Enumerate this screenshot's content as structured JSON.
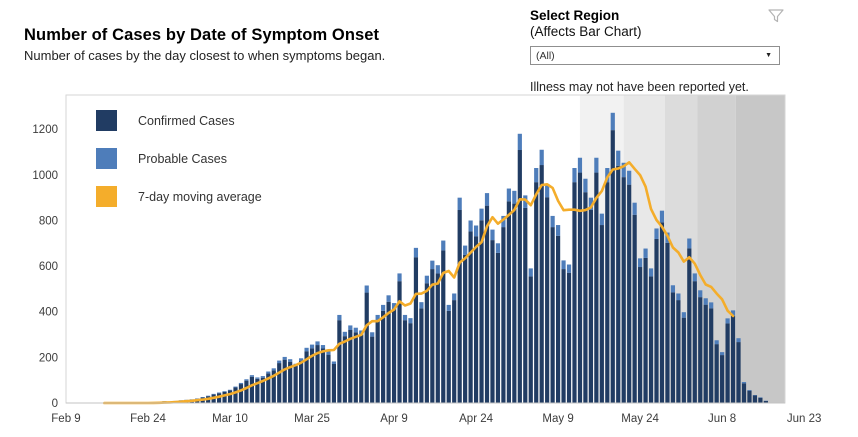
{
  "header": {
    "title": "Number of Cases by Date of Symptom Onset",
    "subtitle": "Number of cases by the day closest to when symptoms began."
  },
  "region_filter": {
    "label": "Select Region",
    "sublabel": "(Affects Bar Chart)",
    "selected": "(All)",
    "icons": {
      "filter": "funnel-icon",
      "dropdown_caret": "caret-down-icon"
    }
  },
  "chart_notes": {
    "unreported_note": "Illness may not have been reported yet."
  },
  "legend": [
    {
      "label": "Confirmed Cases",
      "color": "#213c63"
    },
    {
      "label": "Probable Cases",
      "color": "#4e7dba"
    },
    {
      "label": "7-day moving average",
      "color": "#f4ad2b"
    }
  ],
  "chart_data": {
    "type": "bar",
    "stacked": true,
    "title": "Number of Cases by Date of Symptom Onset",
    "xlabel": "",
    "ylabel": "",
    "ylim": [
      0,
      1350
    ],
    "grid": false,
    "yticks": [
      0,
      200,
      400,
      600,
      800,
      1000,
      1200
    ],
    "xticks": [
      {
        "label": "Feb 9",
        "day": 0
      },
      {
        "label": "Feb 24",
        "day": 15
      },
      {
        "label": "Mar 10",
        "day": 30
      },
      {
        "label": "Mar 25",
        "day": 45
      },
      {
        "label": "Apr 9",
        "day": 60
      },
      {
        "label": "Apr 24",
        "day": 75
      },
      {
        "label": "May 9",
        "day": 90
      },
      {
        "label": "May 24",
        "day": 105
      },
      {
        "label": "Jun 8",
        "day": 120
      },
      {
        "label": "Jun 23",
        "day": 135
      }
    ],
    "dates": [
      "Feb 16",
      "Feb 17",
      "Feb 18",
      "Feb 19",
      "Feb 20",
      "Feb 21",
      "Feb 22",
      "Feb 23",
      "Feb 24",
      "Feb 25",
      "Feb 26",
      "Feb 27",
      "Feb 28",
      "Feb 29",
      "Mar 1",
      "Mar 2",
      "Mar 3",
      "Mar 4",
      "Mar 5",
      "Mar 6",
      "Mar 7",
      "Mar 8",
      "Mar 9",
      "Mar 10",
      "Mar 11",
      "Mar 12",
      "Mar 13",
      "Mar 14",
      "Mar 15",
      "Mar 16",
      "Mar 17",
      "Mar 18",
      "Mar 19",
      "Mar 20",
      "Mar 21",
      "Mar 22",
      "Mar 23",
      "Mar 24",
      "Mar 25",
      "Mar 26",
      "Mar 27",
      "Mar 28",
      "Mar 29",
      "Mar 30",
      "Mar 31",
      "Apr 1",
      "Apr 2",
      "Apr 3",
      "Apr 4",
      "Apr 5",
      "Apr 6",
      "Apr 7",
      "Apr 8",
      "Apr 9",
      "Apr 10",
      "Apr 11",
      "Apr 12",
      "Apr 13",
      "Apr 14",
      "Apr 15",
      "Apr 16",
      "Apr 17",
      "Apr 18",
      "Apr 19",
      "Apr 20",
      "Apr 21",
      "Apr 22",
      "Apr 23",
      "Apr 24",
      "Apr 25",
      "Apr 26",
      "Apr 27",
      "Apr 28",
      "Apr 29",
      "Apr 30",
      "May 1",
      "May 2",
      "May 3",
      "May 4",
      "May 5",
      "May 6",
      "May 7",
      "May 8",
      "May 9",
      "May 10",
      "May 11",
      "May 12",
      "May 13",
      "May 14",
      "May 15",
      "May 16",
      "May 17",
      "May 18",
      "May 19",
      "May 20",
      "May 21",
      "May 22",
      "May 23",
      "May 24",
      "May 25",
      "May 26",
      "May 27",
      "May 28",
      "May 29",
      "May 30",
      "May 31",
      "Jun 1",
      "Jun 2",
      "Jun 3",
      "Jun 4",
      "Jun 5",
      "Jun 6",
      "Jun 7",
      "Jun 8",
      "Jun 9",
      "Jun 10",
      "Jun 11",
      "Jun 12",
      "Jun 13",
      "Jun 14",
      "Jun 15",
      "Jun 16"
    ],
    "series": [
      {
        "name": "Confirmed Cases",
        "color": "#213c63",
        "values": [
          0,
          0,
          0,
          0,
          0,
          0,
          0,
          0,
          0,
          2,
          3,
          7,
          6,
          8,
          11,
          13,
          15,
          19,
          24,
          30,
          38,
          43,
          49,
          55,
          68,
          83,
          98,
          115,
          106,
          111,
          130,
          143,
          175,
          190,
          181,
          162,
          184,
          227,
          240,
          254,
          239,
          212,
          171,
          363,
          293,
          320,
          310,
          299,
          484,
          291,
          363,
          404,
          444,
          412,
          534,
          363,
          350,
          639,
          415,
          525,
          587,
          568,
          669,
          404,
          451,
          846,
          649,
          752,
          731,
          801,
          865,
          714,
          658,
          771,
          884,
          874,
          1109,
          855,
          555,
          968,
          1043,
          902,
          771,
          733,
          587,
          571,
          968,
          1010,
          924,
          846,
          1010,
          780,
          968,
          1196,
          1040,
          990,
          957,
          825,
          596,
          636,
          555,
          719,
          792,
          702,
          485,
          451,
          374,
          678,
          534,
          464,
          431,
          415,
          258,
          210,
          349,
          382,
          267,
          86,
          54,
          33,
          23,
          9
        ]
      },
      {
        "name": "Probable Cases",
        "color": "#4e7dba",
        "values": [
          0,
          0,
          0,
          0,
          0,
          0,
          0,
          0,
          0,
          0,
          0,
          1,
          0,
          1,
          1,
          1,
          1,
          1,
          2,
          2,
          2,
          3,
          3,
          3,
          4,
          5,
          6,
          7,
          6,
          7,
          8,
          9,
          11,
          12,
          11,
          10,
          12,
          15,
          16,
          16,
          15,
          14,
          11,
          23,
          19,
          20,
          20,
          19,
          31,
          19,
          23,
          26,
          28,
          26,
          34,
          23,
          22,
          41,
          27,
          33,
          37,
          36,
          43,
          26,
          29,
          54,
          41,
          48,
          47,
          51,
          55,
          46,
          42,
          49,
          56,
          56,
          71,
          55,
          35,
          62,
          67,
          58,
          49,
          47,
          38,
          36,
          62,
          65,
          59,
          54,
          65,
          50,
          62,
          76,
          66,
          63,
          61,
          53,
          38,
          41,
          35,
          46,
          51,
          45,
          31,
          29,
          24,
          43,
          34,
          30,
          28,
          26,
          17,
          13,
          22,
          24,
          17,
          6,
          3,
          2,
          2,
          1
        ]
      }
    ],
    "moving_average": {
      "name": "7-day moving average",
      "color": "#f4ad2b",
      "window": 7,
      "ends_at": "Jun 10"
    },
    "shaded_bands": {
      "note": "Illness may not have been reported yet.",
      "bands": [
        {
          "start_date": "May 13",
          "start_day": 94,
          "color": "#f2f2f2"
        },
        {
          "start_date": "May 21",
          "start_day": 102,
          "color": "#e8e8e8"
        },
        {
          "start_date": "May 28",
          "start_day": 109.5,
          "color": "#dcdcdc"
        },
        {
          "start_date": "Jun 3",
          "start_day": 115.5,
          "color": "#d1d1d1"
        },
        {
          "start_date": "Jun 10",
          "start_day": 122.5,
          "color": "#c7c7c7"
        }
      ]
    },
    "legend_position": "upper-left"
  }
}
